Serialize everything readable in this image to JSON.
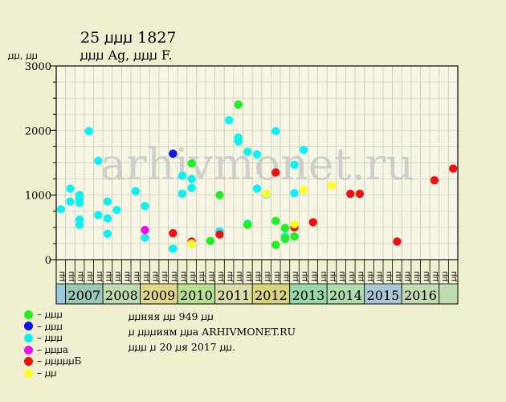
{
  "header": {
    "title": "25 ꙡꙡꙡ 1827",
    "subtitle": "ꙡꙡꙡ Ag, ꙡꙡꙡ F.",
    "y_unit": "ꙡꙡ, ꙡꙡ"
  },
  "watermark": "arhivmonet.ru",
  "info": {
    "line1": "ꙡꙡняя ꙡꙡ 949 ꙡꙡ",
    "line2": "ꙡ ꙡꙡꙡиям ꙡꙡа ARHIVMONET.RU",
    "line3": "ꙡꙡꙡ ꙡ 20 ꙡя 2017 ꙡꙡ."
  },
  "legend": [
    {
      "label": "ꙡꙡꙡ",
      "color": "#22ee22"
    },
    {
      "label": "ꙡꙡꙡ",
      "color": "#0a14ee"
    },
    {
      "label": "ꙡꙡꙡ",
      "color": "#11f0f0"
    },
    {
      "label": "ꙡꙡꙡа",
      "color": "#ee11ee"
    },
    {
      "label": "ꙡꙡꙡꙡꙡБ",
      "color": "#ee1111"
    },
    {
      "label": "ꙡꙡ",
      "color": "#ffff22"
    }
  ],
  "chart_data": {
    "type": "scatter",
    "title": "25 ꙡꙡꙡ 1827",
    "ylabel": "ꙡꙡ, ꙡꙡ",
    "ylim": [
      0,
      3000
    ],
    "yticks": [
      0,
      1000,
      2000,
      3000
    ],
    "x_quarter_labels": [
      "ꙡꙡ",
      "ꙡꙡ",
      "ꙡꙡ",
      "ꙡꙡ"
    ],
    "year_labels": [
      "2007",
      "2008",
      "2009",
      "2010",
      "2011",
      "2012",
      "2013",
      "2014",
      "2015",
      "2016"
    ],
    "year_colors": [
      "#9ac8b8",
      "#c0dcb0",
      "#e0d888",
      "#b8e090",
      "#dcdca8",
      "#d8d47c",
      "#98d8a8",
      "#b0dcb0",
      "#a8c8d8",
      "#c0dcb0"
    ],
    "grid": true,
    "series": [
      {
        "color": "#11f0f0",
        "points": [
          [
            "2006-Q4",
            780
          ],
          [
            "2007-Q1",
            1100
          ],
          [
            "2007-Q1",
            900
          ],
          [
            "2007-Q2",
            620
          ],
          [
            "2007-Q2",
            540
          ],
          [
            "2007-Q2",
            950
          ],
          [
            "2007-Q2",
            880
          ],
          [
            "2007-Q2",
            1000
          ],
          [
            "2007-Q3",
            1990
          ],
          [
            "2007-Q4",
            1530
          ],
          [
            "2007-Q4",
            690
          ],
          [
            "2008-Q1",
            640
          ],
          [
            "2008-Q1",
            400
          ],
          [
            "2008-Q1",
            900
          ],
          [
            "2008-Q2",
            770
          ],
          [
            "2008-Q4",
            1060
          ],
          [
            "2009-Q1",
            830
          ],
          [
            "2009-Q1",
            340
          ],
          [
            "2009-Q4",
            170
          ],
          [
            "2010-Q1",
            1300
          ],
          [
            "2010-Q1",
            1020
          ],
          [
            "2010-Q2",
            1250
          ],
          [
            "2010-Q2",
            1110
          ],
          [
            "2011-Q1",
            420
          ],
          [
            "2011-Q1",
            440
          ],
          [
            "2011-Q2",
            2160
          ],
          [
            "2011-Q3",
            1890
          ],
          [
            "2011-Q3",
            1830
          ],
          [
            "2011-Q4",
            1670
          ],
          [
            "2011-Q4",
            560
          ],
          [
            "2011-Q4",
            550
          ],
          [
            "2012-Q1",
            1630
          ],
          [
            "2012-Q1",
            1100
          ],
          [
            "2012-Q2",
            1010
          ],
          [
            "2012-Q3",
            1990
          ],
          [
            "2012-Q4",
            360
          ],
          [
            "2013-Q1",
            1470
          ],
          [
            "2013-Q1",
            1030
          ],
          [
            "2013-Q2",
            1700
          ]
        ]
      },
      {
        "color": "#0a14ee",
        "points": [
          [
            "2009-Q4",
            1640
          ]
        ]
      },
      {
        "color": "#22ee22",
        "points": [
          [
            "2010-Q2",
            1490
          ],
          [
            "2010-Q4",
            290
          ],
          [
            "2011-Q1",
            1000
          ],
          [
            "2011-Q3",
            2400
          ],
          [
            "2011-Q4",
            540
          ],
          [
            "2012-Q3",
            230
          ],
          [
            "2012-Q3",
            600
          ],
          [
            "2012-Q4",
            490
          ],
          [
            "2012-Q4",
            320
          ],
          [
            "2012-Q4",
            330
          ],
          [
            "2013-Q1",
            360
          ]
        ]
      },
      {
        "color": "#ee11ee",
        "points": [
          [
            "2009-Q1",
            460
          ]
        ]
      },
      {
        "color": "#ee1111",
        "points": [
          [
            "2009-Q4",
            410
          ],
          [
            "2010-Q2",
            280
          ],
          [
            "2011-Q1",
            390
          ],
          [
            "2012-Q3",
            1350
          ],
          [
            "2013-Q1",
            500
          ],
          [
            "2013-Q3",
            580
          ],
          [
            "2014-Q3",
            1020
          ],
          [
            "2014-Q4",
            1020
          ],
          [
            "2015-Q4",
            280
          ],
          [
            "2016-Q4",
            1230
          ],
          [
            "2017-Q2",
            1410
          ]
        ]
      },
      {
        "color": "#ffff22",
        "points": [
          [
            "2010-Q2",
            250
          ],
          [
            "2012-Q2",
            1020
          ],
          [
            "2013-Q1",
            550
          ],
          [
            "2013-Q2",
            1080
          ],
          [
            "2014-Q1",
            1150
          ]
        ]
      }
    ]
  }
}
